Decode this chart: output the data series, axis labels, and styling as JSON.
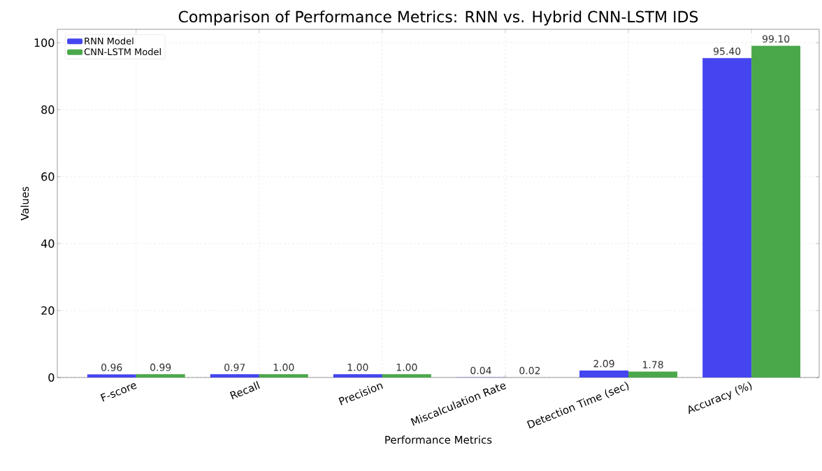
{
  "chart_data": {
    "type": "bar",
    "title": "Comparison of Performance Metrics: RNN vs. Hybrid CNN-LSTM IDS",
    "xlabel": "Performance Metrics",
    "ylabel": "Values",
    "categories": [
      "F-score",
      "Recall",
      "Precision",
      "Miscalculation Rate",
      "Detection Time (sec)",
      "Accuracy (%)"
    ],
    "series": [
      {
        "name": "RNN Model",
        "color": "#4545f0",
        "values": [
          0.96,
          0.97,
          1.0,
          0.04,
          2.09,
          95.4
        ],
        "value_labels": [
          "0.96",
          "0.97",
          "1.00",
          "0.04",
          "2.09",
          "95.40"
        ]
      },
      {
        "name": "CNN-LSTM Model",
        "color": "#4aa84a",
        "values": [
          0.99,
          1.0,
          1.0,
          0.02,
          1.78,
          99.1
        ],
        "value_labels": [
          "0.99",
          "1.00",
          "1.00",
          "0.02",
          "1.78",
          "99.10"
        ]
      }
    ],
    "ylim": [
      0,
      104
    ],
    "yticks": [
      0,
      20,
      40,
      60,
      80,
      100
    ],
    "grid": true,
    "legend": "top left"
  }
}
